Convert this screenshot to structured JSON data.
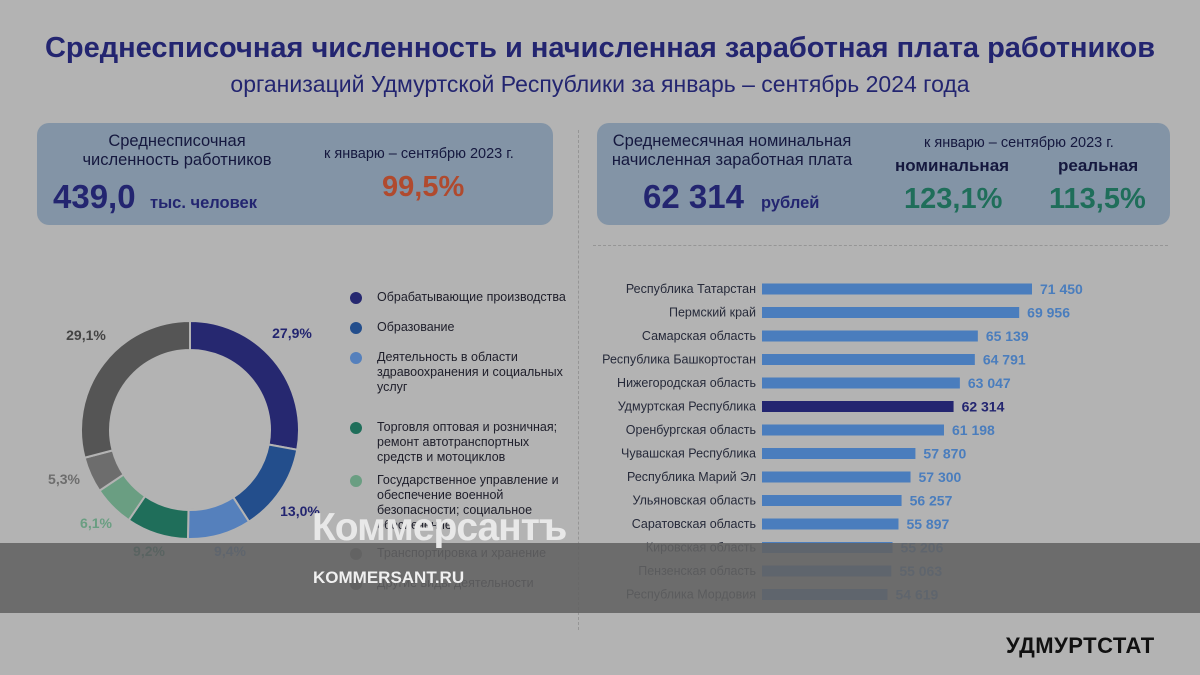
{
  "title_line1": "Среднесписочная численность и начисленная заработная плата работников",
  "title_line2": "организаций Удмуртской Республики за январь – сентябрь 2024 года",
  "card_left": {
    "label_line1": "Среднесписочная",
    "label_line2": "численность работников",
    "value": "439,0",
    "unit": "тыс. человек",
    "compare_label": "к январю – сентябрю 2023 г.",
    "compare_value": "99,5%"
  },
  "card_right": {
    "label_line1": "Среднемесячная номинальная",
    "label_line2": "начисленная заработная плата",
    "value": "62 314",
    "unit": "рублей",
    "compare_label": "к январю – сентябрю 2023 г.",
    "nominal_label": "номинальная",
    "nominal_value": "123,1%",
    "real_label": "реальная",
    "real_value": "113,5%"
  },
  "colors": {
    "title": "#232570",
    "card_bg": "#8394a6",
    "red_value": "#b04a2e",
    "green_value": "#1f6e5a",
    "bar": "#4a7dbd",
    "bar_highlight": "#232570",
    "bar_label": "#4a7dbd"
  },
  "chart_data": [
    {
      "type": "pie",
      "slices": [
        {
          "name": "Обрабатывающие производства",
          "value": 27.9,
          "label": "27,9%",
          "color": "#262870"
        },
        {
          "name": "Образование",
          "value": 13.0,
          "label": "13,0%",
          "color": "#234e8c"
        },
        {
          "name": "Деятельность в области здравоохранения и социальных услуг",
          "value": 9.4,
          "label": "9,4%",
          "color": "#5580bc"
        },
        {
          "name": "Торговля оптовая и розничная; ремонт автотранспортных средств и мотоциклов",
          "value": 9.2,
          "label": "9,2%",
          "color": "#1f6e5a"
        },
        {
          "name": "Государственное управление и обеспечение военной безопасности; социальное обеспечение",
          "value": 6.1,
          "label": "6,1%",
          "color": "#6a9e82"
        },
        {
          "name": "Транспортировка и хранение",
          "value": 5.3,
          "label": "5,3%",
          "color": "#6d6d6d"
        },
        {
          "name": "Другие виды деятельности",
          "value": 29.1,
          "label": "29,1%",
          "color": "#555555"
        }
      ]
    },
    {
      "type": "bar",
      "orientation": "horizontal",
      "categories": [
        "Республика Татарстан",
        "Пермский край",
        "Самарская область",
        "Республика Башкортостан",
        "Нижегородская область",
        "Удмуртская Республика",
        "Оренбургская область",
        "Чувашская Республика",
        "Республика Марий Эл",
        "Ульяновская область",
        "Саратовская область",
        "Кировская область",
        "Пензенская область",
        "Республика Мордовия"
      ],
      "values": [
        71450,
        69956,
        65139,
        64791,
        63047,
        62314,
        61198,
        57870,
        57300,
        56257,
        55897,
        55206,
        55063,
        54619
      ],
      "value_labels": [
        "71 450",
        "69 956",
        "65 139",
        "64 791",
        "63 047",
        "62 314",
        "61 198",
        "57 870",
        "57 300",
        "56 257",
        "55 897",
        "55 206",
        "55 063",
        "54 619"
      ],
      "highlight": "Удмуртская Республика"
    }
  ],
  "watermark": {
    "brand": "Коммерсантъ",
    "url": "KOMMERSANT.RU"
  },
  "logo": "УДМУРТСТАТ"
}
